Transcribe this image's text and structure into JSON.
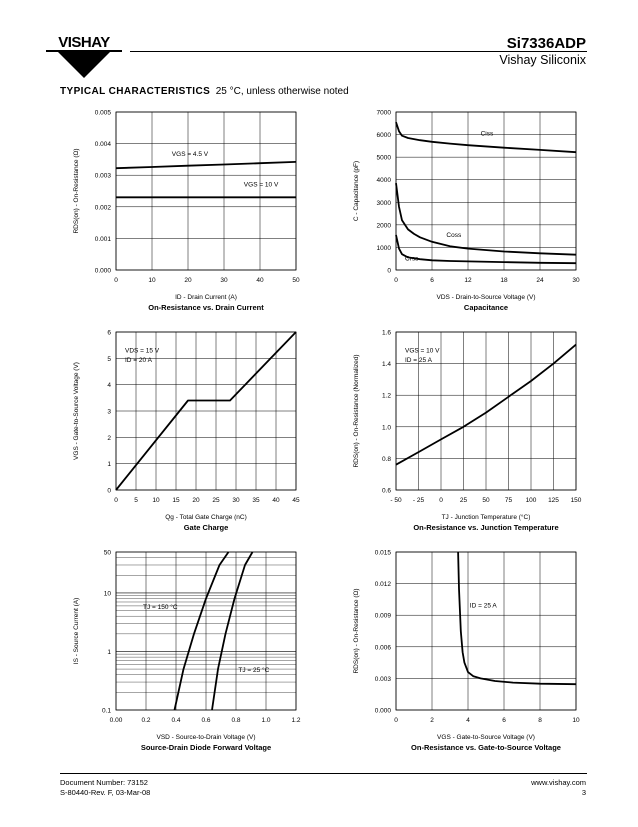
{
  "header": {
    "logo_text": "VISHAY",
    "part_number": "Si7336ADP",
    "company": "Vishay Siliconix"
  },
  "section": {
    "title": "TYPICAL CHARACTERISTICS",
    "condition": "25 °C, unless otherwise noted"
  },
  "colors": {
    "ink": "#000000",
    "grid": "#000000",
    "background": "#ffffff"
  },
  "footer": {
    "doc_number": "Document Number: 73152",
    "revision": "S-80440-Rev. F, 03-Mar-08",
    "website": "www.vishay.com",
    "page": "3"
  },
  "chart_data": [
    {
      "type": "line",
      "title": "On-Resistance vs. Drain Current",
      "xlabel": "ID - Drain Current (A)",
      "ylabel": "RDS(on) - On-Resistance (Ω)",
      "xlim": [
        0,
        50
      ],
      "ylim": [
        0,
        0.005
      ],
      "xticks": [
        0,
        10,
        20,
        30,
        40,
        50
      ],
      "yticks": [
        0.0,
        0.001,
        0.002,
        0.003,
        0.004,
        0.005
      ],
      "xtick_labels": [
        "0",
        "10",
        "20",
        "30",
        "40",
        "50"
      ],
      "ytick_labels": [
        "0.000",
        "0.001",
        "0.002",
        "0.003",
        "0.004",
        "0.005"
      ],
      "grid": true,
      "series": [
        {
          "name": "VGS = 4.5 V",
          "x": [
            0,
            10,
            20,
            30,
            40,
            50
          ],
          "y": [
            0.00322,
            0.00326,
            0.0033,
            0.00334,
            0.00338,
            0.00342
          ]
        },
        {
          "name": "VGS = 10 V",
          "x": [
            0,
            10,
            20,
            30,
            40,
            50
          ],
          "y": [
            0.0023,
            0.0023,
            0.0023,
            0.0023,
            0.0023,
            0.0023
          ]
        }
      ],
      "annotations": [
        "VGS = 4.5 V",
        "VGS = 10 V"
      ]
    },
    {
      "type": "line",
      "title": "Capacitance",
      "xlabel": "VDS - Drain-to-Source Voltage (V)",
      "ylabel": "C - Capacitance (pF)",
      "xlim": [
        0,
        30
      ],
      "ylim": [
        0,
        7000
      ],
      "xticks": [
        0,
        6,
        12,
        18,
        24,
        30
      ],
      "yticks": [
        0,
        1000,
        2000,
        3000,
        4000,
        5000,
        6000,
        7000
      ],
      "xtick_labels": [
        "0",
        "6",
        "12",
        "18",
        "24",
        "30"
      ],
      "ytick_labels": [
        "0",
        "1000",
        "2000",
        "3000",
        "4000",
        "5000",
        "6000",
        "7000"
      ],
      "grid": true,
      "series": [
        {
          "name": "Ciss",
          "x": [
            0,
            0.5,
            1,
            2,
            4,
            6,
            9,
            12,
            18,
            24,
            30
          ],
          "y": [
            6550,
            6150,
            5950,
            5850,
            5750,
            5680,
            5600,
            5530,
            5420,
            5320,
            5220
          ]
        },
        {
          "name": "Coss",
          "x": [
            0,
            0.5,
            1,
            2,
            3,
            4,
            6,
            9,
            12,
            18,
            24,
            30
          ],
          "y": [
            3850,
            2800,
            2200,
            1800,
            1600,
            1450,
            1250,
            1050,
            950,
            820,
            740,
            680
          ]
        },
        {
          "name": "Crss",
          "x": [
            0,
            0.5,
            1,
            2,
            4,
            6,
            9,
            12,
            18,
            24,
            30
          ],
          "y": [
            1550,
            950,
            700,
            560,
            480,
            430,
            400,
            380,
            350,
            320,
            300
          ]
        }
      ],
      "annotations": [
        "Ciss",
        "Coss",
        "Crss"
      ]
    },
    {
      "type": "line",
      "title": "Gate Charge",
      "xlabel": "Qg - Total Gate Charge (nC)",
      "ylabel": "VGS - Gate-to-Source Voltage (V)",
      "xlim": [
        0,
        45
      ],
      "ylim": [
        0,
        6
      ],
      "xticks": [
        0,
        5,
        10,
        15,
        20,
        25,
        30,
        35,
        40,
        45
      ],
      "yticks": [
        0,
        1,
        2,
        3,
        4,
        5,
        6
      ],
      "xtick_labels": [
        "0",
        "5",
        "10",
        "15",
        "20",
        "25",
        "30",
        "35",
        "40",
        "45"
      ],
      "ytick_labels": [
        "0",
        "1",
        "2",
        "3",
        "4",
        "5",
        "6"
      ],
      "grid": true,
      "series": [
        {
          "name": "",
          "x": [
            0,
            18,
            28.5,
            45
          ],
          "y": [
            0,
            3.4,
            3.4,
            6.0
          ]
        }
      ],
      "annotations": [
        "VDS = 15 V",
        "ID = 20 A"
      ]
    },
    {
      "type": "line",
      "title": "On-Resistance vs. Junction Temperature",
      "xlabel": "TJ - Junction Temperature (°C)",
      "ylabel": "RDS(on) - On-Resistance (Normalized)",
      "xlim": [
        -50,
        150
      ],
      "ylim": [
        0.6,
        1.6
      ],
      "xticks": [
        -50,
        -25,
        0,
        25,
        50,
        75,
        100,
        125,
        150
      ],
      "yticks": [
        0.6,
        0.8,
        1.0,
        1.2,
        1.4,
        1.6
      ],
      "xtick_labels": [
        "- 50",
        "- 25",
        "0",
        "25",
        "50",
        "75",
        "100",
        "125",
        "150"
      ],
      "ytick_labels": [
        "0.6",
        "0.8",
        "1.0",
        "1.2",
        "1.4",
        "1.6"
      ],
      "grid": true,
      "series": [
        {
          "name": "",
          "x": [
            -50,
            -25,
            0,
            25,
            50,
            75,
            100,
            125,
            150
          ],
          "y": [
            0.76,
            0.84,
            0.92,
            1.0,
            1.09,
            1.19,
            1.29,
            1.4,
            1.52
          ]
        }
      ],
      "annotations": [
        "VGS = 10 V",
        "ID = 25 A"
      ]
    },
    {
      "type": "line",
      "title": "Source-Drain Diode Forward Voltage",
      "xlabel": "VSD - Source-to-Drain Voltage (V)",
      "ylabel": "IS - Source Current (A)",
      "xlim": [
        0,
        1.2
      ],
      "ylim": [
        0.1,
        50
      ],
      "yscale": "log",
      "xticks": [
        0,
        0.2,
        0.4,
        0.6,
        0.8,
        1.0,
        1.2
      ],
      "yticks": [
        0.1,
        1,
        10,
        50
      ],
      "xtick_labels": [
        "0.00",
        "0.2",
        "0.4",
        "0.6",
        "0.8",
        "1.0",
        "1.2"
      ],
      "ytick_labels": [
        "0.1",
        "1",
        "10",
        "50"
      ],
      "grid": true,
      "series": [
        {
          "name": "TJ = 150 °C",
          "x": [
            0.39,
            0.45,
            0.52,
            0.6,
            0.69,
            0.75
          ],
          "y": [
            0.1,
            0.5,
            2,
            8,
            30,
            50
          ]
        },
        {
          "name": "TJ = 25 °C",
          "x": [
            0.64,
            0.68,
            0.73,
            0.79,
            0.86,
            0.91
          ],
          "y": [
            0.1,
            0.5,
            2,
            8,
            30,
            50
          ]
        }
      ],
      "annotations": [
        "TJ = 150 °C",
        "TJ = 25 °C"
      ]
    },
    {
      "type": "line",
      "title": "On-Resistance vs. Gate-to-Source Voltage",
      "xlabel": "VGS - Gate-to-Source Voltage (V)",
      "ylabel": "RDS(on) - On-Resistance (Ω)",
      "xlim": [
        0,
        10
      ],
      "ylim": [
        0,
        0.015
      ],
      "xticks": [
        0,
        2,
        4,
        6,
        8,
        10
      ],
      "yticks": [
        0.0,
        0.003,
        0.006,
        0.009,
        0.012,
        0.015
      ],
      "xtick_labels": [
        "0",
        "2",
        "4",
        "6",
        "8",
        "10"
      ],
      "ytick_labels": [
        "0.000",
        "0.003",
        "0.006",
        "0.009",
        "0.012",
        "0.015"
      ],
      "grid": true,
      "series": [
        {
          "name": "",
          "x": [
            3.45,
            3.5,
            3.6,
            3.7,
            3.8,
            4.0,
            4.3,
            4.7,
            5.5,
            6.5,
            8,
            10
          ],
          "y": [
            0.015,
            0.0115,
            0.0075,
            0.0055,
            0.0045,
            0.0036,
            0.0032,
            0.003,
            0.00275,
            0.0026,
            0.0025,
            0.00245
          ]
        }
      ],
      "annotations": [
        "ID = 25 A"
      ]
    }
  ]
}
